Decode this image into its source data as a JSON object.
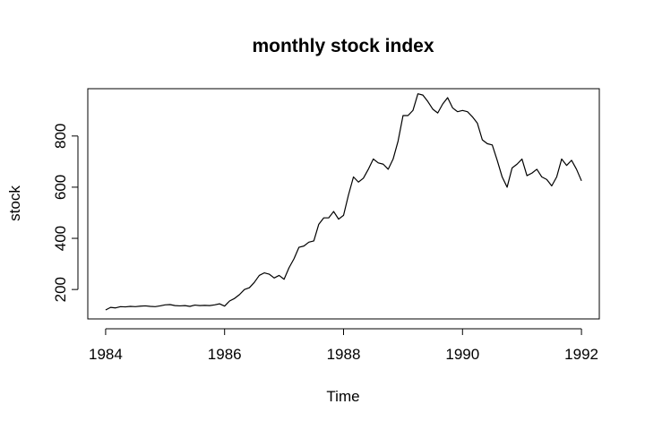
{
  "chart_data": {
    "type": "line",
    "title": "monthly stock index",
    "xlabel": "Time",
    "ylabel": "stock",
    "xlim": [
      1983.7,
      1992.3
    ],
    "ylim": [
      85,
      985
    ],
    "x_ticks": [
      1984,
      1986,
      1988,
      1990,
      1992
    ],
    "x_tick_labels": [
      "1984",
      "1986",
      "1988",
      "1990",
      "1992"
    ],
    "y_ticks": [
      200,
      400,
      600,
      800
    ],
    "y_tick_labels": [
      "200",
      "400",
      "600",
      "800"
    ],
    "grid": false,
    "legend": "none",
    "series": [
      {
        "start": 1984,
        "frequency": 12,
        "values": [
          120,
          130,
          128,
          133,
          132,
          134,
          133,
          135,
          136,
          134,
          133,
          136,
          140,
          141,
          137,
          136,
          137,
          134,
          139,
          137,
          138,
          137,
          140,
          144,
          135,
          155,
          165,
          180,
          200,
          207,
          228,
          255,
          265,
          260,
          245,
          255,
          240,
          285,
          320,
          365,
          370,
          385,
          390,
          455,
          480,
          480,
          505,
          475,
          490,
          570,
          640,
          620,
          635,
          670,
          710,
          695,
          690,
          670,
          710,
          780,
          880,
          880,
          900,
          965,
          960,
          935,
          905,
          890,
          925,
          950,
          910,
          895,
          900,
          895,
          875,
          850,
          785,
          770,
          765,
          705,
          640,
          600,
          675,
          690,
          710,
          645,
          655,
          670,
          640,
          630,
          605,
          640,
          710,
          685,
          705,
          670,
          625
        ]
      }
    ]
  }
}
